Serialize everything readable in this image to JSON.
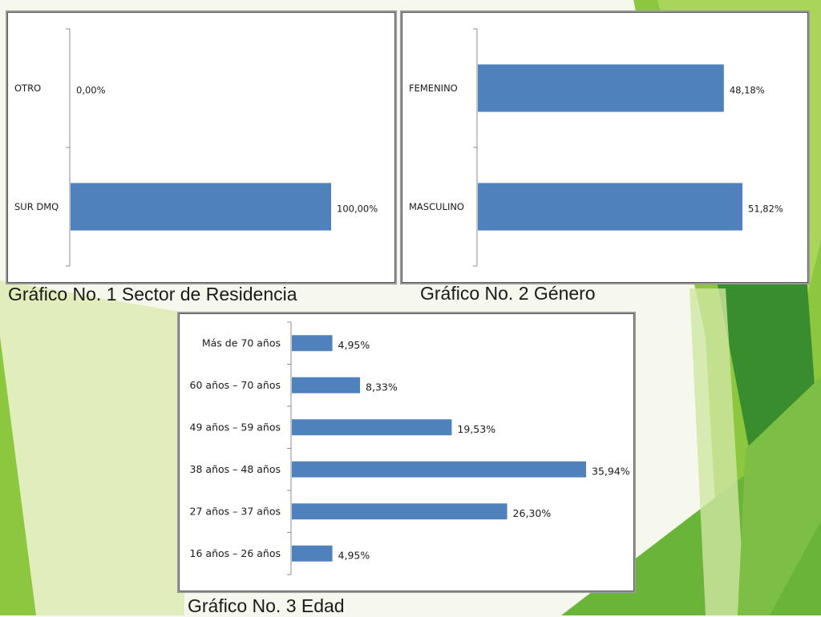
{
  "theme": {
    "bar_color": "#4f81bd",
    "accent_green": "#8dc63f",
    "dark_green": "#3a8d2f"
  },
  "captions": {
    "chart1": "Gráfico No. 1 Sector de Residencia",
    "chart2": "Gráfico No. 2 Género",
    "chart3": "Gráfico No. 3 Edad"
  },
  "chart_data": [
    {
      "type": "bar",
      "orientation": "horizontal",
      "categories": [
        "OTRO",
        "SUR DMQ"
      ],
      "values": [
        0.0,
        100.0
      ],
      "data_labels": [
        "0,00%",
        "100,00%"
      ],
      "xlim": [
        0,
        100
      ],
      "grid": false
    },
    {
      "type": "bar",
      "orientation": "horizontal",
      "categories": [
        "FEMENINO",
        "MASCULINO"
      ],
      "values": [
        48.18,
        51.82
      ],
      "data_labels": [
        "48,18%",
        "51,82%"
      ],
      "xlim": [
        0,
        51.82
      ],
      "grid": false
    },
    {
      "type": "bar",
      "orientation": "horizontal",
      "categories": [
        "Más de 70 años",
        "60 años – 70 años",
        "49 años – 59 años",
        "38 años – 48 años",
        "27 años – 37 años",
        "16 años – 26 años"
      ],
      "values": [
        4.95,
        8.33,
        19.53,
        35.94,
        26.3,
        4.95
      ],
      "data_labels": [
        "4,95%",
        "8,33%",
        "19,53%",
        "35,94%",
        "26,30%",
        "4,95%"
      ],
      "xlim": [
        0,
        35.94
      ],
      "grid": false
    }
  ]
}
